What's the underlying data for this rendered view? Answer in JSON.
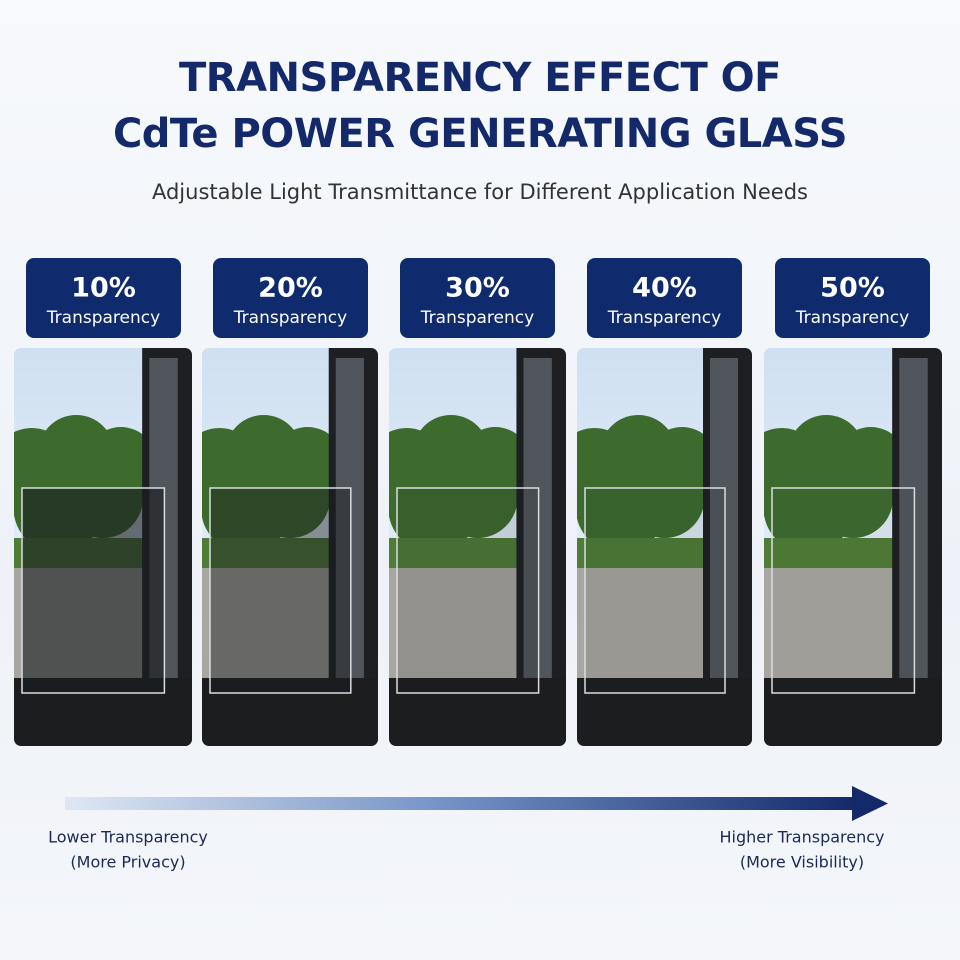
{
  "header": {
    "title_lines": [
      "TRANSPARENCY EFFECT OF",
      "CdTe POWER GENERATING GLASS"
    ],
    "subtitle": "Adjustable Light Transmittance for Different Application Needs"
  },
  "panels": [
    {
      "percent": "10%",
      "label": "Transparency"
    },
    {
      "percent": "20%",
      "label": "Transparency"
    },
    {
      "percent": "30%",
      "label": "Transparency"
    },
    {
      "percent": "40%",
      "label": "Transparency"
    },
    {
      "percent": "50%",
      "label": "Transparency"
    }
  ],
  "scale": {
    "left": {
      "title": "Lower Transparency",
      "note": "(More Privacy)"
    },
    "right": {
      "title": "Higher Transparency",
      "note": "(More Visibility)"
    }
  }
}
